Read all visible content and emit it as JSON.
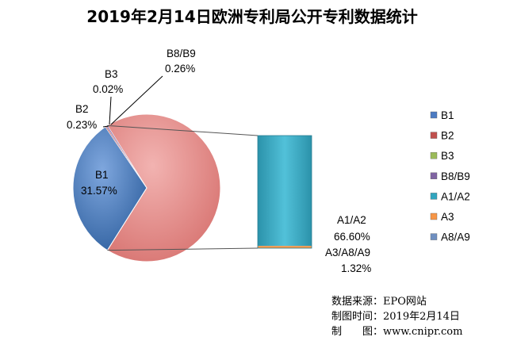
{
  "chart_data": {
    "type": "pie-of-bar",
    "title": "2019年2月14日欧洲专利局公开专利数据统计",
    "slices": [
      {
        "name": "B1",
        "value": 31.57,
        "label": "B1",
        "pct": "31.57%",
        "color": "#4B7BC2"
      },
      {
        "name": "B2",
        "value": 0.23,
        "label": "B2",
        "pct": "0.23%",
        "color": "#C0504D"
      },
      {
        "name": "B3",
        "value": 0.02,
        "label": "B3",
        "pct": "0.02%",
        "color": "#9BBB59"
      },
      {
        "name": "B8/B9",
        "value": 0.26,
        "label": "B8/B9",
        "pct": "0.26%",
        "color": "#8064A2"
      },
      {
        "name": "A1/A2",
        "value": 66.6,
        "label": "A1/A2",
        "pct": "66.60%",
        "color": "#31A5BF"
      },
      {
        "name": "A3",
        "value": 1.32,
        "label": "A3",
        "pct": "",
        "color": "#F79646"
      },
      {
        "name": "A8/A9",
        "value": 0.0,
        "label": "A8/A9",
        "pct": "",
        "color": "#6F8FC0"
      }
    ],
    "other_slice": {
      "value": 67.92,
      "color": "#E48B89"
    },
    "bar_breakdown": [
      {
        "name": "A1/A2",
        "value": 66.6
      },
      {
        "name": "A3",
        "value": 1.32
      },
      {
        "name": "A8/A9",
        "value": 0.0
      }
    ],
    "bar_labels": {
      "top": {
        "name": "A1/A2",
        "pct": "66.60%"
      },
      "bottom": {
        "name": "A3/A8/A9",
        "pct": "1.32%"
      }
    },
    "legend": [
      "B1",
      "B2",
      "B3",
      "B8/B9",
      "A1/A2",
      "A3",
      "A8/A9"
    ],
    "legend_placement": "right"
  },
  "source": {
    "line1": "数据来源：EPO网站",
    "line2": "制图时间：2019年2月14日",
    "line3": "制　　图：www.cnipr.com"
  }
}
